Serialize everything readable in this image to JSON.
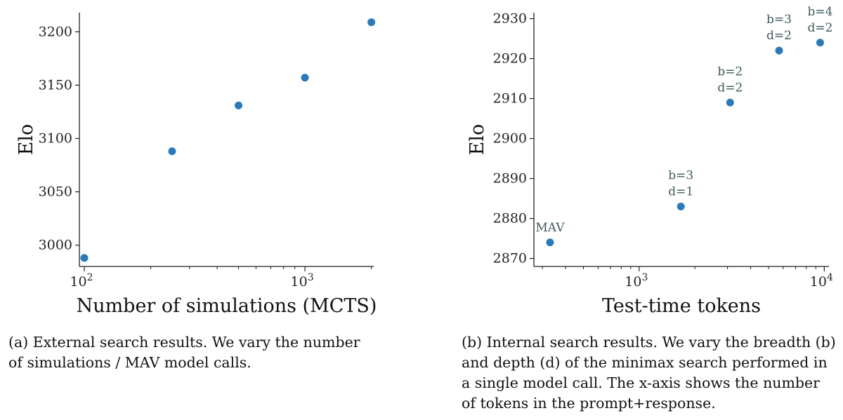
{
  "chart_data": [
    {
      "type": "scatter",
      "xscale": "log",
      "x": [
        100,
        250,
        500,
        1000,
        2000
      ],
      "y": [
        2988,
        3088,
        3131,
        3157,
        3209
      ],
      "xlabel": "Number of simulations (MCTS)",
      "ylabel": "Elo",
      "xlim": [
        95,
        2050
      ],
      "ylim": [
        2980,
        3218
      ],
      "yticks": [
        "3000",
        "3050",
        "3100",
        "3150",
        "3200"
      ],
      "xticks": [
        {
          "base": "10",
          "exp": "2"
        },
        {
          "base": "10",
          "exp": "3"
        }
      ],
      "marker_color": "#2a7ab9",
      "caption": "(a) External search results. We vary the number of simulations / MAV model calls.",
      "caption_lines": [
        "(a) External search results. We vary the number",
        "of simulations / MAV model calls."
      ]
    },
    {
      "type": "scatter",
      "xscale": "log",
      "x": [
        330,
        1680,
        3100,
        5700,
        9500
      ],
      "y": [
        2874,
        2883,
        2909,
        2922,
        2924
      ],
      "annotations": [
        [
          "MAV"
        ],
        [
          "b=3",
          "d=1"
        ],
        [
          "b=2",
          "d=2"
        ],
        [
          "b=3",
          "d=2"
        ],
        [
          "b=4",
          "d=2"
        ]
      ],
      "xlabel": "Test-time tokens",
      "ylabel": "Elo",
      "xlim": [
        270,
        10600
      ],
      "ylim": [
        2868,
        2931.5
      ],
      "yticks": [
        "2870",
        "2880",
        "2890",
        "2900",
        "2910",
        "2920",
        "2930"
      ],
      "xticks": [
        {
          "base": "10",
          "exp": "3"
        },
        {
          "base": "10",
          "exp": "4"
        }
      ],
      "marker_color": "#2a7ab9",
      "caption": "(b) Internal search results. We vary the breadth (b) and depth (d) of the minimax search performed in a single model call. The x-axis shows the number of tokens in the prompt+response.",
      "caption_lines": [
        "(b) Internal search results. We vary the breadth (b)",
        "and depth (d) of the minimax search performed in",
        "a single model call. The x-axis shows the number",
        "of tokens in the prompt+response."
      ]
    }
  ]
}
